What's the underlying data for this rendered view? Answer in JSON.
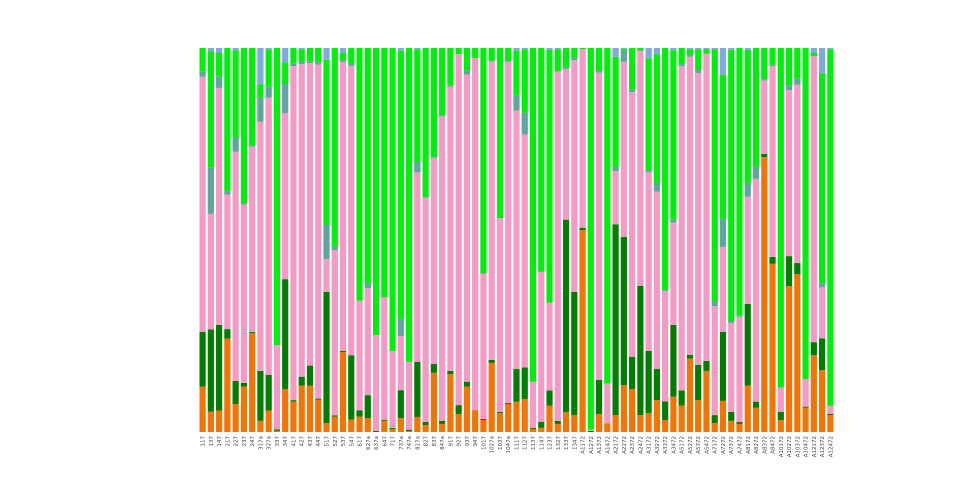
{
  "chart_data": {
    "type": "bar",
    "stacked": true,
    "title": "",
    "xlabel": "",
    "ylabel": "",
    "ylim": [
      0,
      100
    ],
    "grid": false,
    "legend": "none",
    "categories": [
      "117",
      "137",
      "147",
      "217",
      "227",
      "237",
      "247",
      "317a",
      "327a",
      "337",
      "347",
      "417",
      "427",
      "437",
      "447",
      "517",
      "527",
      "537",
      "547",
      "617",
      "627a",
      "637a",
      "647",
      "717",
      "737a",
      "747a",
      "817a",
      "827",
      "837",
      "847a",
      "917",
      "927",
      "937",
      "947",
      "1017",
      "1027a",
      "1037",
      "1047a",
      "1117",
      "1127",
      "1137",
      "1147",
      "1237",
      "1327",
      "1337",
      "1347",
      "A1172",
      "A1272",
      "A1372",
      "A1472",
      "A2172",
      "A2272",
      "A2372",
      "A2472",
      "A3172",
      "A3272",
      "A3372",
      "A3472",
      "A5172",
      "A5272",
      "A5372",
      "A5472",
      "A7172",
      "A7272",
      "A7372",
      "A7472",
      "A8172",
      "A8272",
      "A8372",
      "A8472",
      "A10172",
      "A10272",
      "A10372",
      "A10472",
      "A12172",
      "A12372",
      "A12472"
    ],
    "series_colors": [
      "#f27405",
      "#017e02",
      "#f49ac4",
      "#5fa5a0",
      "#00f00c",
      "#80aadd"
    ],
    "stack_order": "bottom-to-top",
    "values": [
      [
        11.8,
        14.3,
        66.4,
        1.3,
        6.2,
        0
      ],
      [
        5.3,
        21.4,
        30.1,
        12,
        30.4,
        0.8
      ],
      [
        5.6,
        22.3,
        61.7,
        2.9,
        6.2,
        1.3
      ],
      [
        24.3,
        2.5,
        35,
        1,
        37.2,
        0
      ],
      [
        7.3,
        6,
        59.7,
        3.7,
        22.7,
        0.6
      ],
      [
        11.8,
        1,
        46.4,
        0.4,
        40.4,
        0
      ],
      [
        25.8,
        0.3,
        48.2,
        0.3,
        25.4,
        0
      ],
      [
        2.9,
        13,
        64.9,
        6.2,
        3.5,
        9.5
      ],
      [
        5.6,
        9.3,
        72.2,
        2.8,
        9.7,
        0.4
      ],
      [
        0.3,
        0.4,
        21.9,
        0,
        77.4,
        0
      ],
      [
        11.2,
        28.6,
        43.2,
        7.6,
        5.7,
        3.7
      ],
      [
        7.9,
        0.4,
        87,
        0.6,
        4.1,
        0
      ],
      [
        12.1,
        2.3,
        81.4,
        0.7,
        3.2,
        0.3
      ],
      [
        12.1,
        5.2,
        78.8,
        0.3,
        3.6,
        0
      ],
      [
        8.4,
        0.3,
        87,
        0.6,
        3.7,
        0
      ],
      [
        2.3,
        34.2,
        8.5,
        8.9,
        43,
        3.1
      ],
      [
        4,
        0.3,
        43.1,
        0.8,
        51.8,
        0
      ],
      [
        20.8,
        0.3,
        75.3,
        0.5,
        1.8,
        1.3
      ],
      [
        3.2,
        16.8,
        75.3,
        0.5,
        4.2,
        0
      ],
      [
        4,
        1.6,
        28.6,
        0,
        65.8,
        0
      ],
      [
        3.6,
        6,
        27.9,
        1.2,
        61.3,
        0
      ],
      [
        0,
        0.3,
        24.9,
        0,
        74.8,
        0
      ],
      [
        2.9,
        0.3,
        31.9,
        0,
        64.9,
        0
      ],
      [
        0.8,
        0.3,
        20,
        0,
        78.9,
        0
      ],
      [
        3.6,
        7.3,
        14.1,
        4.4,
        69.9,
        0.7
      ],
      [
        0.2,
        0.4,
        17.7,
        0,
        81.7,
        0
      ],
      [
        3.9,
        14.3,
        49.2,
        2.7,
        29.3,
        0.3
      ],
      [
        1.8,
        0.8,
        58.4,
        0.2,
        38.8,
        0
      ],
      [
        15.4,
        2.3,
        53.7,
        0.2,
        28.4,
        0
      ],
      [
        2.1,
        0.8,
        79.3,
        0.3,
        17.5,
        0
      ],
      [
        15.1,
        0.8,
        74,
        0.4,
        9.7,
        0
      ],
      [
        4.7,
        2.3,
        91.4,
        0,
        1.6,
        0
      ],
      [
        11.8,
        1.3,
        80,
        1,
        5.9,
        0
      ],
      [
        5.7,
        0,
        91.7,
        0,
        2.6,
        0
      ],
      [
        3.1,
        0.3,
        37.8,
        0.2,
        58.6,
        0
      ],
      [
        18,
        0.8,
        77.7,
        0.2,
        3.3,
        0
      ],
      [
        4.9,
        0.3,
        50.5,
        0,
        44.3,
        0
      ],
      [
        7.3,
        0.3,
        88.8,
        0.2,
        3.4,
        0
      ],
      [
        7.9,
        8.5,
        67.3,
        3.9,
        11.7,
        0.7
      ],
      [
        8.6,
        8.2,
        60.7,
        5.6,
        16.6,
        0.3
      ],
      [
        0.8,
        0.3,
        12,
        0,
        86.9,
        0
      ],
      [
        1.1,
        1.5,
        39.1,
        0,
        58.3,
        0
      ],
      [
        6.9,
        3.9,
        22.9,
        0,
        65.8,
        0.5
      ],
      [
        2.1,
        0.8,
        91,
        0,
        5.8,
        0.3
      ],
      [
        5.2,
        50.1,
        39.2,
        0.4,
        5.1,
        0
      ],
      [
        4.4,
        32.1,
        60.3,
        0.7,
        2.5,
        0
      ],
      [
        52.6,
        0.6,
        46.5,
        0,
        0.3,
        0
      ],
      [
        0,
        0.3,
        0.3,
        0,
        99.4,
        0
      ],
      [
        4.7,
        8.9,
        80,
        0.5,
        5.9,
        0
      ],
      [
        2.3,
        0,
        10.3,
        0,
        87.4,
        0
      ],
      [
        4.4,
        49.7,
        13.8,
        1.1,
        28.7,
        2.3
      ],
      [
        12.2,
        38.6,
        45.6,
        2.9,
        0.5,
        0.2
      ],
      [
        11.2,
        8.4,
        68.9,
        0.6,
        10.9,
        0
      ],
      [
        4.4,
        33.7,
        61.1,
        0.2,
        0.6,
        0
      ],
      [
        4.9,
        16.2,
        46.6,
        0.5,
        29.1,
        2.7
      ],
      [
        8.3,
        8.1,
        46.2,
        2.1,
        33.7,
        1.6
      ],
      [
        3.1,
        4.9,
        28.7,
        0.3,
        63,
        0
      ],
      [
        9.2,
        18.7,
        26.6,
        0.9,
        44,
        0.6
      ],
      [
        6.9,
        3.9,
        84.5,
        0.5,
        4.2,
        0
      ],
      [
        19.1,
        1,
        77.6,
        0.5,
        1.5,
        0.3
      ],
      [
        8.3,
        9.2,
        76,
        0.9,
        5.3,
        0.3
      ],
      [
        15.9,
        2.6,
        80,
        0,
        1.2,
        0.3
      ],
      [
        2.3,
        2.1,
        28.4,
        1.3,
        65.6,
        0.3
      ],
      [
        8.1,
        18,
        22.1,
        7.3,
        37.5,
        7
      ],
      [
        2.9,
        2.3,
        23.2,
        0.5,
        70.6,
        0.5
      ],
      [
        2.1,
        0.5,
        27.4,
        0.3,
        69.7,
        0
      ],
      [
        12.1,
        21.3,
        27.9,
        3.4,
        34.8,
        0.5
      ],
      [
        6.3,
        1.6,
        58,
        3.1,
        31,
        0
      ],
      [
        71.6,
        0.8,
        19.1,
        0.4,
        8.1,
        0
      ],
      [
        43.8,
        1.8,
        49.7,
        0.3,
        4.4,
        0
      ],
      [
        3.1,
        2.1,
        6.3,
        0.2,
        88.3,
        0
      ],
      [
        38,
        7.8,
        43.2,
        1.3,
        9.7,
        0
      ],
      [
        41.1,
        2.9,
        46.4,
        1.6,
        8,
        0
      ],
      [
        6.3,
        0.3,
        7.2,
        0,
        86.2,
        0
      ],
      [
        20,
        3.4,
        74.5,
        0,
        0.8,
        1.3
      ],
      [
        16.1,
        8.3,
        13.3,
        1,
        54.7,
        6.6
      ],
      [
        4.4,
        0.3,
        2.1,
        0,
        92.9,
        0.3
      ]
    ]
  }
}
